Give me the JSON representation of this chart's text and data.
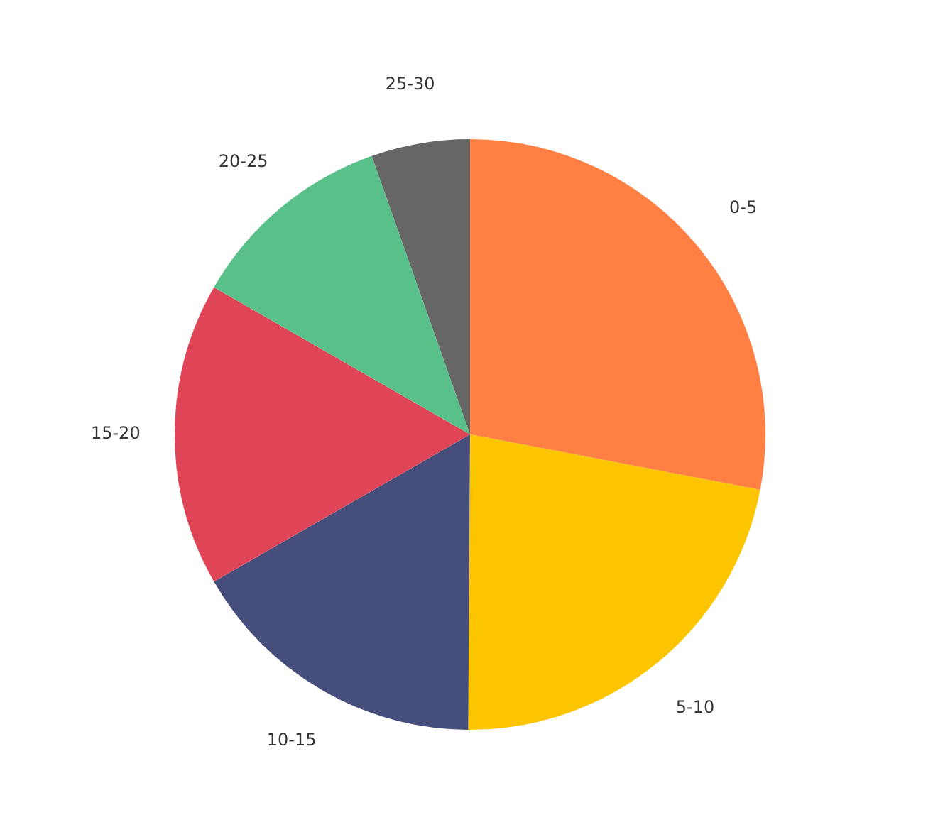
{
  "chart_data": {
    "type": "pie",
    "categories": [
      "0-5",
      "5-10",
      "10-15",
      "15-20",
      "20-25",
      "25-30"
    ],
    "values": [
      28,
      22.1,
      16.6,
      16.6,
      11.3,
      5.4
    ],
    "colors": [
      "#ff8042",
      "#fdc500",
      "#464f7c",
      "#df4457",
      "#58c088",
      "#666666"
    ],
    "legend": false
  }
}
